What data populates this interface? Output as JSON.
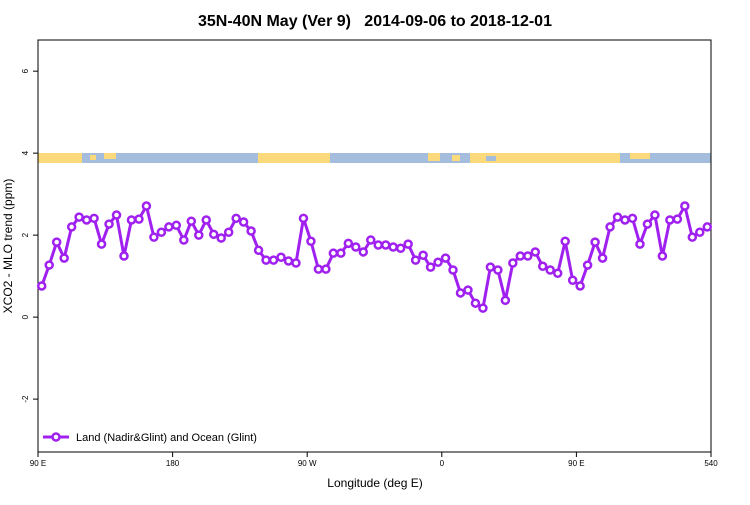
{
  "chart_data": {
    "type": "line",
    "title": "35N-40N May (Ver 9)   2014-09-06 to 2018-12-01",
    "x_label": "Longitude (deg E)",
    "y_label": "XCO2 - MLO trend (ppm)",
    "xlim": [
      90,
      540
    ],
    "ylim": [
      -3.29,
      6.76
    ],
    "xticks": [
      {
        "value": 90,
        "label": "90 E"
      },
      180,
      {
        "value": 270,
        "label": "90 W"
      },
      {
        "value": 360,
        "label": "0"
      },
      {
        "value": 450,
        "label": "90 E"
      },
      540
    ],
    "yticks": [
      -2,
      0,
      2,
      4,
      6
    ],
    "legend_position": "bottom-left",
    "x": [
      92.5,
      97.5,
      102.5,
      107.5,
      112.5,
      117.5,
      122.5,
      127.5,
      132.5,
      137.5,
      142.5,
      147.5,
      152.5,
      157.5,
      162.5,
      167.5,
      172.5,
      177.5,
      182.5,
      187.5,
      192.5,
      197.5,
      202.5,
      207.5,
      212.5,
      217.5,
      222.5,
      227.5,
      232.5,
      237.5,
      242.5,
      247.5,
      252.5,
      257.5,
      262.5,
      267.5,
      272.5,
      277.5,
      282.5,
      287.5,
      292.5,
      297.5,
      302.5,
      307.5,
      312.5,
      317.5,
      322.5,
      327.5,
      332.5,
      337.5,
      342.5,
      347.5,
      352.5,
      357.5,
      362.5,
      367.5,
      372.5,
      377.5,
      382.5,
      387.5,
      392.5,
      397.5,
      402.5,
      407.5,
      412.5,
      417.5,
      422.5,
      427.5,
      432.5,
      437.5,
      442.5,
      447.5,
      452.5,
      457.5,
      462.5,
      467.5,
      472.5,
      477.5,
      482.5,
      487.5,
      492.5,
      497.5,
      502.5,
      507.5,
      512.5,
      517.5,
      522.5,
      527.5,
      532.5,
      537.5
    ],
    "series": [
      {
        "name": "Land (Nadir&Glint) and Ocean (Glint)",
        "color": "#a020f0",
        "values": [
          0.76,
          1.27,
          1.83,
          1.44,
          2.2,
          2.44,
          2.37,
          2.41,
          1.78,
          2.27,
          2.49,
          1.49,
          2.37,
          2.39,
          2.71,
          1.95,
          2.07,
          2.2,
          2.24,
          1.88,
          2.34,
          2.0,
          2.37,
          2.02,
          1.93,
          2.07,
          2.41,
          2.32,
          2.1,
          1.63,
          1.39,
          1.39,
          1.46,
          1.37,
          1.32,
          2.41,
          1.85,
          1.17,
          1.17,
          1.56,
          1.56,
          1.8,
          1.71,
          1.59,
          1.88,
          1.76,
          1.76,
          1.71,
          1.68,
          1.78,
          1.39,
          1.51,
          1.22,
          1.34,
          1.44,
          1.15,
          0.59,
          0.66,
          0.34,
          0.22,
          1.22,
          1.15,
          0.41,
          1.32,
          1.49,
          1.49,
          1.59,
          1.24,
          1.15,
          1.07,
          1.85,
          0.9,
          0.76,
          1.27,
          1.83,
          1.44,
          2.2,
          2.44,
          2.37,
          2.41,
          1.78,
          2.27,
          2.49,
          1.49,
          2.37,
          2.39,
          2.71,
          1.95,
          2.07,
          2.2
        ]
      }
    ]
  }
}
